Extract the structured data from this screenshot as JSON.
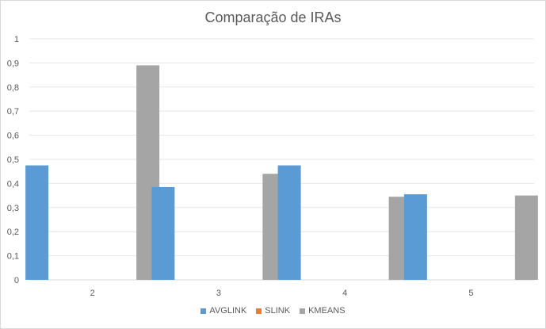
{
  "chart_data": {
    "type": "bar",
    "title": "Comparação de IRAs",
    "categories": [
      "2",
      "3",
      "4",
      "5"
    ],
    "series": [
      {
        "name": "AVGLINK",
        "color": "#5b9bd5",
        "values": [
          0.475,
          0.385,
          0.475,
          0.355
        ]
      },
      {
        "name": "SLINK",
        "color": "#ed7d31",
        "values": [
          0,
          0,
          0,
          0
        ]
      },
      {
        "name": "KMEANS",
        "color": "#a5a5a5",
        "values": [
          0.89,
          0.44,
          0.345,
          0.35
        ]
      }
    ],
    "ylim": [
      0,
      1
    ],
    "yticks": [
      "0",
      "0,1",
      "0,2",
      "0,3",
      "0,4",
      "0,5",
      "0,6",
      "0,7",
      "0,8",
      "0,9",
      "1"
    ],
    "grid": true,
    "legend_position": "bottom"
  }
}
